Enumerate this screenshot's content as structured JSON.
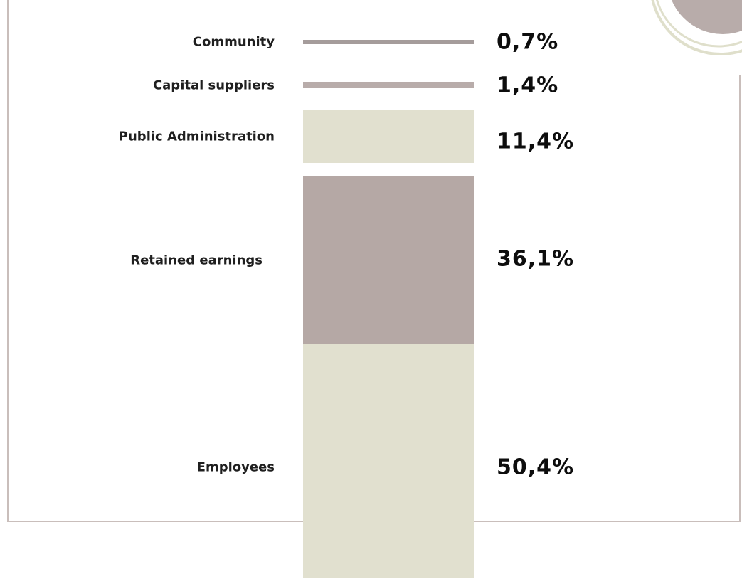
{
  "chart_data": {
    "type": "bar",
    "categories": [
      "Community",
      "Capital suppliers",
      "Public Administration",
      "Retained earnings",
      "Employees"
    ],
    "values": [
      0.7,
      1.4,
      11.4,
      36.1,
      50.4
    ],
    "value_labels": [
      "0,7%",
      "1,4%",
      "11,4%",
      "36,1%",
      "50,4%"
    ],
    "unit": "%",
    "colors": [
      "#a59c9b",
      "#b8acaa",
      "#e1e0cf",
      "#b5a8a5",
      "#e1e0cf"
    ],
    "title": "",
    "xlabel": "",
    "ylabel": ""
  },
  "decor": {
    "frame_color": "#c9bebb",
    "ring_color": "#dfdfcb",
    "blob_color": "#b8acaa"
  }
}
